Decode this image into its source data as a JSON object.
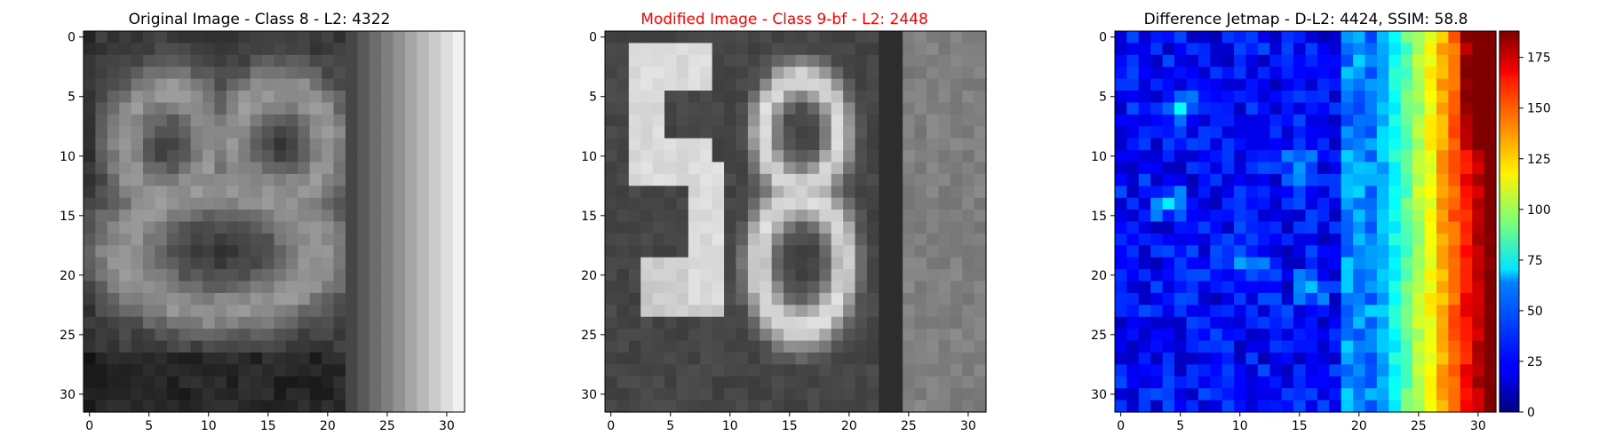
{
  "chart_data": [
    {
      "type": "heatmap",
      "title": "Original Image - Class 8 - L2: 4322",
      "title_color": "#000000",
      "colormap": "gray",
      "xlim": [
        -0.5,
        31.5
      ],
      "ylim": [
        31.5,
        -0.5
      ],
      "xticks": [
        0,
        5,
        10,
        15,
        20,
        25,
        30
      ],
      "yticks": [
        0,
        5,
        10,
        15,
        20,
        25,
        30
      ],
      "grid": false,
      "content": "grayscale 32x32 image of a blurry digit 8 with a bright vertical gradient band on the right"
    },
    {
      "type": "heatmap",
      "title": "Modified Image - Class 9-bf - L2: 2448",
      "title_color": "#ff0000",
      "colormap": "gray",
      "xlim": [
        -0.5,
        31.5
      ],
      "ylim": [
        31.5,
        -0.5
      ],
      "xticks": [
        0,
        5,
        10,
        15,
        20,
        25,
        30
      ],
      "yticks": [
        0,
        5,
        10,
        15,
        20,
        25,
        30
      ],
      "grid": false,
      "content": "grayscale 32x32 image showing the digits 5 and 8"
    },
    {
      "type": "heatmap",
      "title": "Difference Jetmap - D-L2: 4424, SSIM: 58.8",
      "title_color": "#000000",
      "colormap": "jet",
      "xlim": [
        -0.5,
        31.5
      ],
      "ylim": [
        31.5,
        -0.5
      ],
      "xticks": [
        0,
        5,
        10,
        15,
        20,
        25,
        30
      ],
      "yticks": [
        0,
        5,
        10,
        15,
        20,
        25,
        30
      ],
      "colorbar": {
        "range": [
          0,
          188
        ],
        "ticks": [
          0,
          25,
          50,
          75,
          100,
          125,
          150,
          175
        ]
      },
      "grid": false,
      "content": "per-pixel absolute difference; mostly low (blue) on the left, rising to high (red) for columns 22-31"
    }
  ],
  "tick_labels": {
    "axis": [
      "0",
      "5",
      "10",
      "15",
      "20",
      "25",
      "30"
    ],
    "colorbar": [
      "0",
      "25",
      "50",
      "75",
      "100",
      "125",
      "150",
      "175"
    ]
  }
}
